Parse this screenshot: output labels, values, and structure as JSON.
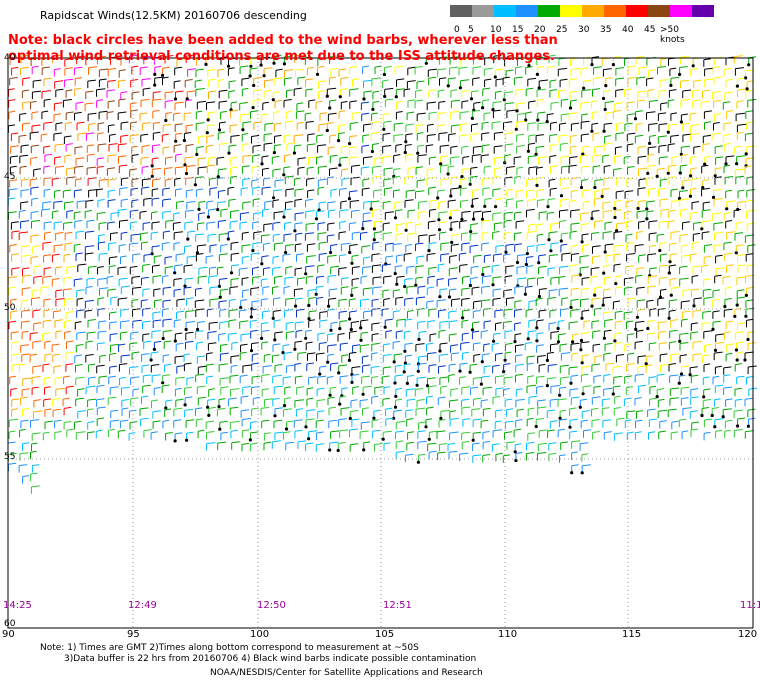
{
  "title": "Rapidscat Winds(12.5KM) 20160706 descending",
  "note": "Note: black circles have been added to the wind barbs, wherever less than optimal wind retrieval conditions are met due to the ISS attitude changes.",
  "colorbar": {
    "labels": [
      "0",
      "5",
      "10",
      "15",
      "20",
      "25",
      "30",
      "35",
      "40",
      "45",
      ">50 knots"
    ],
    "colors": [
      "#606060",
      "#9a9a9a",
      "#00bfff",
      "#1e90ff",
      "#00aa00",
      "#ffff00",
      "#ffaa00",
      "#ff6600",
      "#ff0000",
      "#8b4513",
      "#ff00ff",
      "#6600aa"
    ]
  },
  "x_axis": {
    "ticks": [
      "90",
      "95",
      "100",
      "105",
      "110",
      "115",
      "120"
    ]
  },
  "y_axis": {
    "ticks": [
      "40",
      "45",
      "50",
      "55",
      "60"
    ]
  },
  "times": [
    "14:25",
    "12:49",
    "12:50",
    "12:51",
    "11:1"
  ],
  "footer": {
    "line1": "Note: 1) Times are GMT 2)Times along bottom correspond to measurement at ~50S",
    "line2": "3)Data buffer is 22 hrs from 20160706 4) Black wind barbs indicate possible contamination",
    "line3": "NOAA/NESDIS/Center for Satellite Applications and Research"
  },
  "map_data": {
    "lon_range": [
      90,
      120
    ],
    "lat_range": [
      -40,
      -60
    ],
    "regions": [
      {
        "name": "northwest-high-winds",
        "dominant": [
          "orange",
          "red",
          "purple",
          "black"
        ]
      },
      {
        "name": "central-low-winds",
        "dominant": [
          "blue",
          "cyan",
          "black"
        ]
      },
      {
        "name": "east-moderate-winds",
        "dominant": [
          "yellow",
          "green",
          "black"
        ]
      }
    ]
  }
}
